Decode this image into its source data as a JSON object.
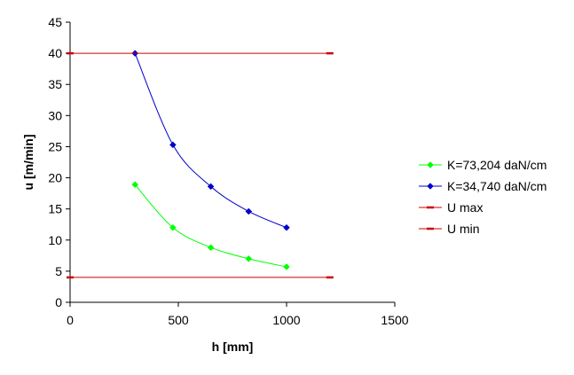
{
  "chart_data": {
    "type": "line",
    "xlabel": "h [mm]",
    "ylabel": "u [m/min]",
    "xlim": [
      0,
      1500
    ],
    "ylim": [
      0,
      45
    ],
    "x_ticks": [
      "0",
      "500",
      "1000",
      "1500"
    ],
    "y_ticks": [
      "0",
      "5",
      "10",
      "15",
      "20",
      "25",
      "30",
      "35",
      "40",
      "45"
    ],
    "grid": false,
    "legend_position": "right",
    "series": [
      {
        "name": "K=73,204 daN/cm",
        "color": "#00ff00",
        "marker": "diamond",
        "smooth": true,
        "x": [
          300,
          475,
          650,
          825,
          1000
        ],
        "y": [
          18.9,
          12.0,
          8.8,
          7.0,
          5.7
        ]
      },
      {
        "name": "K=34,740 daN/cm",
        "color": "#0000cc",
        "marker": "diamond",
        "smooth": true,
        "x": [
          300,
          475,
          650,
          825,
          1000
        ],
        "y": [
          40.0,
          25.3,
          18.6,
          14.6,
          12.0
        ]
      },
      {
        "name": "U max",
        "color": "#cc0000",
        "marker": "dash",
        "smooth": false,
        "x": [
          0,
          1200
        ],
        "y": [
          40,
          40
        ]
      },
      {
        "name": "U min",
        "color": "#cc0000",
        "marker": "dash",
        "smooth": false,
        "x": [
          0,
          1200
        ],
        "y": [
          4,
          4
        ]
      }
    ]
  }
}
